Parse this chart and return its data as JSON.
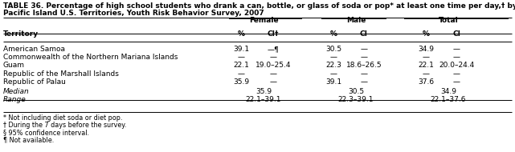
{
  "title_line1": "TABLE 36. Percentage of high school students who drank a can, bottle, or glass of soda or pop* at least one time per day,† by sex —",
  "title_line2": "Pacific Island U.S. Territories, Youth Risk Behavior Survey, 2007",
  "col_groups": [
    "Female",
    "Male",
    "Total"
  ],
  "rows": [
    [
      "American Samoa",
      "39.1",
      "—¶",
      "30.5",
      "—",
      "34.9",
      "—"
    ],
    [
      "Commonwealth of the Northern Mariana Islands",
      "—",
      "—",
      "—",
      "—",
      "—",
      "—"
    ],
    [
      "Guam",
      "22.1",
      "19.0–25.4",
      "22.3",
      "18.6–26.5",
      "22.1",
      "20.0–24.4"
    ],
    [
      "Republic of the Marshall Islands",
      "—",
      "—",
      "—",
      "—",
      "—",
      "—"
    ],
    [
      "Republic of Palau",
      "35.9",
      "—",
      "39.1",
      "—",
      "37.6",
      "—"
    ]
  ],
  "median_vals": [
    "35.9",
    "30.5",
    "34.9"
  ],
  "range_vals": [
    "22.1–39.1",
    "22.3–39.1",
    "22.1–37.6"
  ],
  "footnotes": [
    "* Not including diet soda or diet pop.",
    "† During the 7 days before the survey.",
    "§ 95% confidence interval.",
    "¶ Not available."
  ],
  "bg_color": "#FFFFFF"
}
